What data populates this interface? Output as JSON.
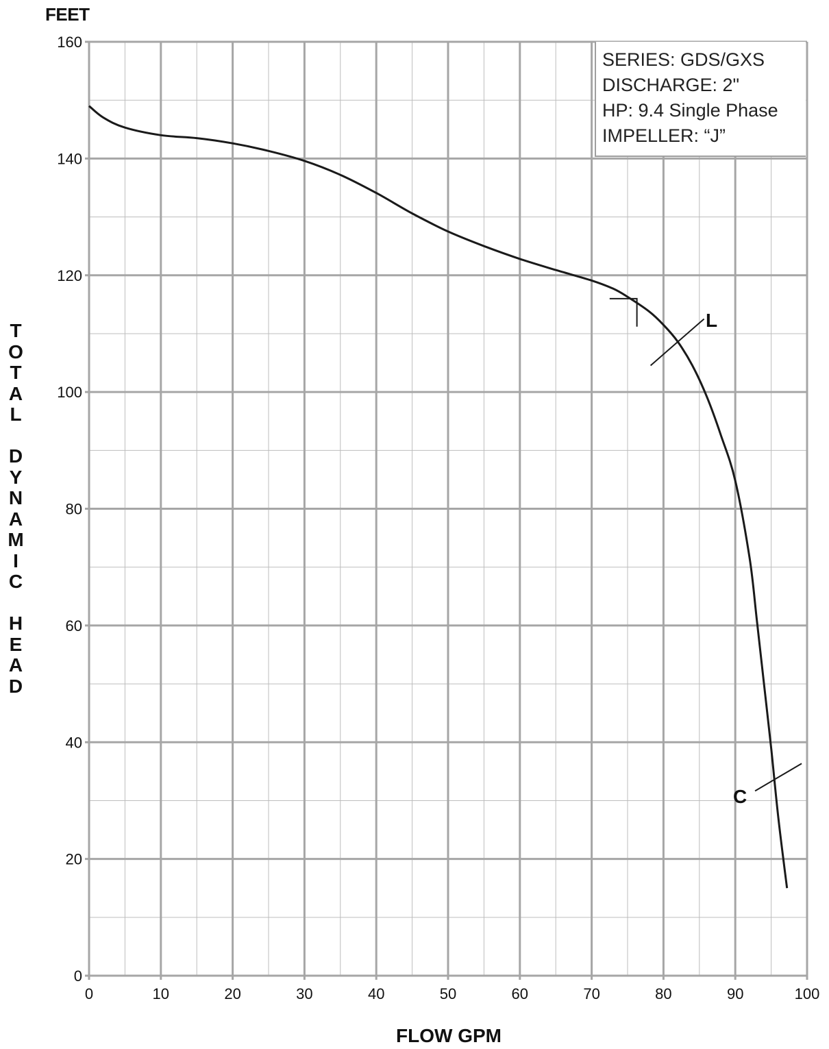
{
  "chart_data": {
    "type": "line",
    "unit_label": "FEET",
    "xlabel": "FLOW GPM",
    "ylabel": "TOTAL DYNAMIC HEAD",
    "ylabel_lines": "T\nO\nT\nA\nL\n \nD\nY\nN\nA\nM\nI\nC\n \nH\nE\nA\nD",
    "xlim": [
      0,
      100
    ],
    "ylim": [
      0,
      160
    ],
    "x_ticks": [
      0,
      10,
      20,
      30,
      40,
      50,
      60,
      70,
      80,
      90,
      100
    ],
    "y_ticks": [
      0,
      20,
      40,
      60,
      80,
      100,
      120,
      140,
      160
    ],
    "x_minor_step": 5,
    "y_minor_step": 10,
    "grid": true,
    "info_box": {
      "lines": [
        "SERIES: GDS/GXS",
        "DISCHARGE: 2\"",
        "HP: 9.4  Single Phase",
        "IMPELLER: “J”"
      ]
    },
    "series": [
      {
        "x": [
          0,
          2,
          5,
          10,
          15,
          20,
          25,
          30,
          35,
          40,
          45,
          50,
          55,
          60,
          65,
          70,
          73,
          75,
          78,
          80,
          82,
          84,
          86,
          88,
          90,
          92,
          93,
          94,
          95,
          96,
          97.2
        ],
        "y": [
          149,
          147,
          145.3,
          144,
          143.5,
          142.6,
          141.3,
          139.6,
          137.2,
          134.1,
          130.6,
          127.5,
          125,
          122.8,
          120.9,
          119.1,
          117.7,
          116.3,
          113.8,
          111.5,
          108.6,
          104.6,
          99.3,
          92.6,
          84.8,
          71.5,
          61,
          50,
          39,
          27,
          15
        ]
      }
    ],
    "annotations": [
      {
        "label": "L",
        "x": 82.5,
        "y": 109
      },
      {
        "label": "C",
        "x": 96,
        "y": 34
      }
    ],
    "colors": {
      "curve": "#1a1a1a",
      "grid": "#a6a6a6"
    }
  }
}
